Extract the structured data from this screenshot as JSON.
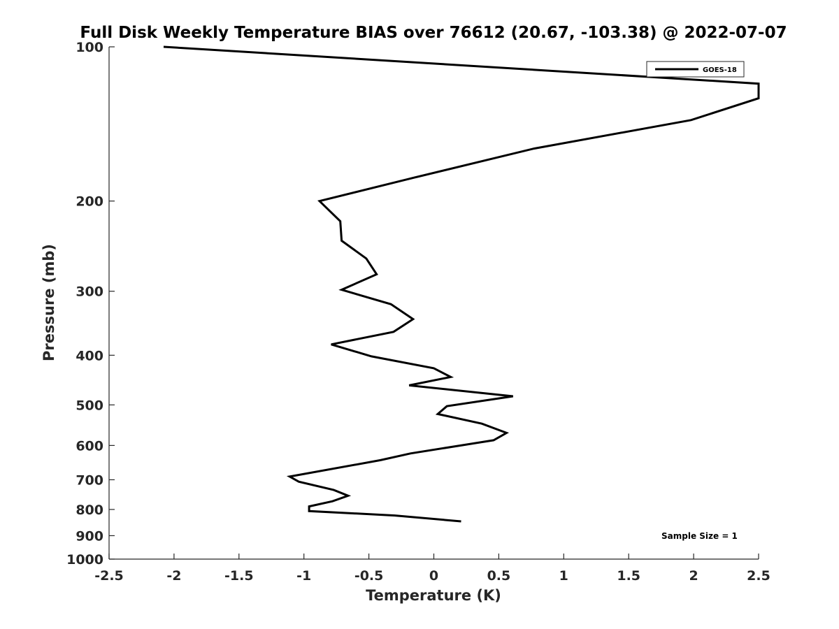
{
  "chart_data": {
    "type": "line",
    "title": "Full Disk Weekly Temperature BIAS over 76612 (20.67, -103.38) @ 2022-07-07",
    "xlabel": "Temperature (K)",
    "ylabel": "Pressure (mb)",
    "xlim": [
      -2.5,
      2.5
    ],
    "ylim": [
      1000,
      100
    ],
    "yscale": "log",
    "x_ticks": [
      -2.5,
      -2,
      -1.5,
      -1,
      -0.5,
      0,
      0.5,
      1,
      1.5,
      2,
      2.5
    ],
    "x_tick_labels": [
      "-2.5",
      "-2",
      "-1.5",
      "-1",
      "-0.5",
      "0",
      "0.5",
      "1",
      "1.5",
      "2",
      "2.5"
    ],
    "y_ticks": [
      100,
      200,
      300,
      400,
      500,
      600,
      700,
      800,
      900,
      1000
    ],
    "y_tick_labels": [
      "100",
      "200",
      "300",
      "400",
      "500",
      "600",
      "700",
      "800",
      "900",
      "1000"
    ],
    "grid": false,
    "legend_position": "top-right",
    "annotation": "Sample Size = 1",
    "series": [
      {
        "name": "GOES-18",
        "color": "#000000",
        "points": [
          {
            "x": -2.08,
            "p": 100
          },
          {
            "x": 2.5,
            "p": 118
          },
          {
            "x": 2.5,
            "p": 126
          },
          {
            "x": 1.98,
            "p": 139
          },
          {
            "x": 0.77,
            "p": 158
          },
          {
            "x": -0.15,
            "p": 180
          },
          {
            "x": -0.88,
            "p": 200
          },
          {
            "x": -0.72,
            "p": 219
          },
          {
            "x": -0.71,
            "p": 239
          },
          {
            "x": -0.52,
            "p": 259
          },
          {
            "x": -0.44,
            "p": 278
          },
          {
            "x": -0.71,
            "p": 298
          },
          {
            "x": -0.33,
            "p": 318
          },
          {
            "x": -0.16,
            "p": 340
          },
          {
            "x": -0.31,
            "p": 360
          },
          {
            "x": -0.79,
            "p": 381
          },
          {
            "x": -0.48,
            "p": 402
          },
          {
            "x": 0.0,
            "p": 424
          },
          {
            "x": 0.13,
            "p": 441
          },
          {
            "x": -0.19,
            "p": 458
          },
          {
            "x": 0.61,
            "p": 481
          },
          {
            "x": 0.1,
            "p": 503
          },
          {
            "x": 0.03,
            "p": 521
          },
          {
            "x": 0.37,
            "p": 544
          },
          {
            "x": 0.56,
            "p": 567
          },
          {
            "x": 0.46,
            "p": 586
          },
          {
            "x": -0.18,
            "p": 622
          },
          {
            "x": -0.41,
            "p": 641
          },
          {
            "x": -1.11,
            "p": 690
          },
          {
            "x": -1.04,
            "p": 706
          },
          {
            "x": -0.77,
            "p": 733
          },
          {
            "x": -0.66,
            "p": 752
          },
          {
            "x": -0.78,
            "p": 771
          },
          {
            "x": -0.96,
            "p": 789
          },
          {
            "x": -0.96,
            "p": 806
          },
          {
            "x": -0.3,
            "p": 822
          },
          {
            "x": 0.21,
            "p": 844
          }
        ]
      }
    ]
  }
}
